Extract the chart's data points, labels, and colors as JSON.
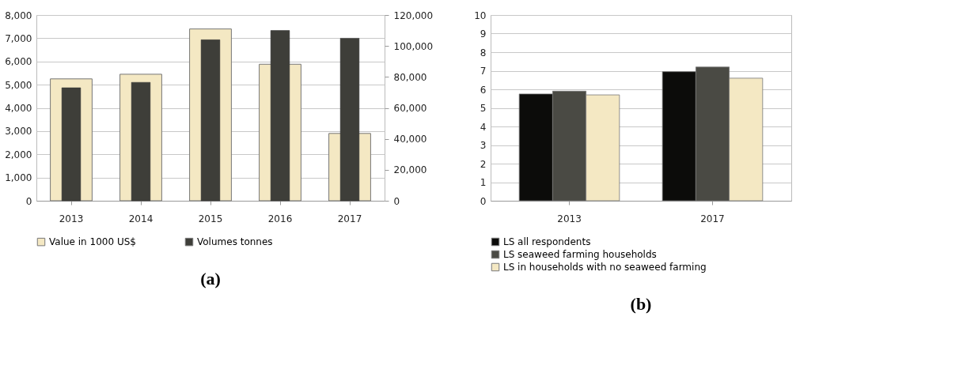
{
  "chart_data": [
    {
      "type": "bar",
      "categories": [
        "2013",
        "2014",
        "2015",
        "2016",
        "2017"
      ],
      "series": [
        {
          "name": "Value in 1000 US$",
          "color": "#f4e8c3",
          "values": [
            5250,
            5450,
            7400,
            5880,
            2900
          ]
        },
        {
          "name": "Volumes tonnes",
          "color": "#3e3e39",
          "axis": "y2",
          "values": [
            73000,
            76500,
            104000,
            110000,
            105000
          ]
        }
      ],
      "ylim": [
        0,
        8000
      ],
      "yticks": [
        0,
        {
          "value": 1000,
          "label": "1,000"
        },
        {
          "value": 2000,
          "label": "2,000"
        },
        {
          "value": 3000,
          "label": "3,000"
        },
        {
          "value": 4000,
          "label": "4,000"
        },
        {
          "value": 5000,
          "label": "5,000"
        },
        {
          "value": 6000,
          "label": "6,000"
        },
        {
          "value": 7000,
          "label": "7,000"
        },
        {
          "value": 8000,
          "label": "8,000"
        }
      ],
      "y2lim": [
        0,
        120000
      ],
      "y2ticks": [
        0,
        {
          "value": 20000,
          "label": "20,000"
        },
        {
          "value": 40000,
          "label": "40,000"
        },
        {
          "value": 60000,
          "label": "60,000"
        },
        {
          "value": 80000,
          "label": "80,000"
        },
        {
          "value": 100000,
          "label": "100,000"
        },
        {
          "value": 120000,
          "label": "120,000"
        }
      ],
      "grid": "y",
      "legend": "bottom",
      "annotations": [
        "(a)"
      ]
    },
    {
      "type": "bar",
      "categories": [
        "2013",
        "2017"
      ],
      "series": [
        {
          "name": "LS all respondents",
          "color": "#0c0c0a",
          "values": [
            5.75,
            6.95
          ]
        },
        {
          "name": "LS seaweed farming households",
          "color": "#4a4a44",
          "values": [
            5.9,
            7.2
          ]
        },
        {
          "name": "LS in households with no seaweed farming",
          "color": "#f4e8c3",
          "values": [
            5.7,
            6.6
          ]
        }
      ],
      "ylim": [
        0,
        10
      ],
      "yticks": [
        0,
        1,
        2,
        3,
        4,
        5,
        6,
        7,
        8,
        9,
        10
      ],
      "grid": "y",
      "legend": "bottom left",
      "annotations": [
        "(b)"
      ]
    }
  ]
}
